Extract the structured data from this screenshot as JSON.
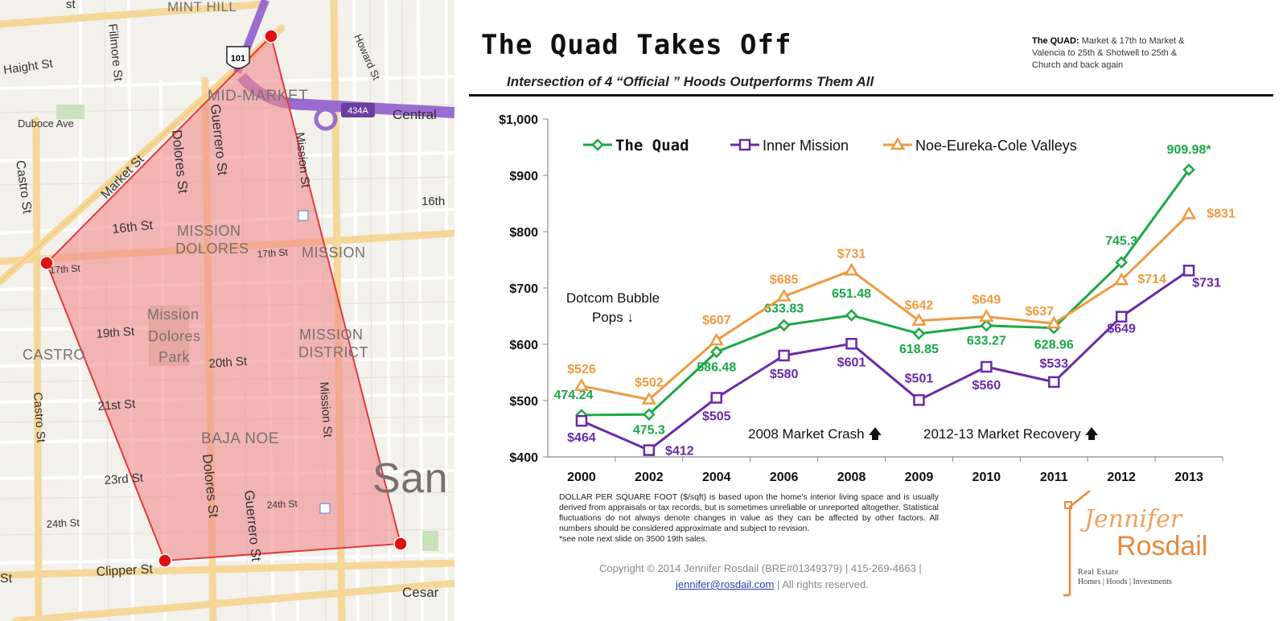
{
  "map": {
    "streets": {
      "haight": "Haight St",
      "fillmore": "Fillmore St",
      "duboce": "Duboce Ave",
      "castro_v": "Castro St",
      "market": "Market St",
      "dolores": "Dolores St",
      "guerrero": "Guerrero St",
      "mission": "Mission St",
      "howard": "Howard St",
      "st16": "16th St",
      "st17": "17th St",
      "st19": "19th St",
      "st20": "20th St",
      "st21": "21st St",
      "st23": "23rd St",
      "st24": "24th St",
      "clipper": "Clipper St",
      "cesar": "Cesar",
      "central": "Central",
      "sixteenth_right": "16th",
      "castro_v2": "Castro St",
      "dolores2": "Dolores St",
      "guerrero2": "Guerrero St",
      "mission2": "Mission St",
      "st17b": "17th St",
      "st24b": "24th St",
      "st_partial_left": "St",
      "st_partial_top": "st"
    },
    "hoods": {
      "mint_hill": "MINT HILL",
      "mid_market": "MID-MARKET",
      "mission_dolores1": "MISSION",
      "mission_dolores2": "DOLORES",
      "mission_top": "MISSION",
      "castro": "CASTRO",
      "park1": "Mission",
      "park2": "Dolores",
      "park3": "Park",
      "mission_district1": "MISSION",
      "mission_district2": "DISTRICT",
      "baja_noe": "BAJA NOE",
      "san": "San"
    },
    "shields": {
      "us101": "101",
      "exit434a": "434A"
    },
    "colors": {
      "polygon_fill": "#f08c8c",
      "polygon_stroke": "#e23a3a",
      "pin": "#e01010",
      "major_road": "#f6d79a",
      "freeway": "#9b6bd1"
    }
  },
  "header": {
    "title": "The Quad Takes Off",
    "subtitle": "Intersection of 4 “Official ” Hoods Outperforms Them All",
    "quad_note_label": "The QUAD:",
    "quad_note_text": "Market & 17th to Market & Valencia to 25th & Shotwell to 25th & Church and back again"
  },
  "chart_data": {
    "type": "line",
    "categories": [
      "2000",
      "2002",
      "2004",
      "2006",
      "2008",
      "2009",
      "2010",
      "2011",
      "2012",
      "2013"
    ],
    "ylim": [
      400,
      1000
    ],
    "y_ticks": [
      400,
      500,
      600,
      700,
      800,
      900,
      1000
    ],
    "y_tick_labels": [
      "$400",
      "$500",
      "$600",
      "$700",
      "$800",
      "$900",
      "$1,000"
    ],
    "xlabel": "",
    "ylabel": "",
    "legend_position": "top",
    "grid": false,
    "series": [
      {
        "name": "The Quad",
        "color": "#1aa845",
        "marker": "diamond",
        "values": [
          474.24,
          475.3,
          586.48,
          633.83,
          651.48,
          618.85,
          633.27,
          628.96,
          745.3,
          909.98
        ],
        "labels": [
          "474.24",
          "475.3",
          "586.48",
          "633.83",
          "651.48",
          "618.85",
          "633.27",
          "628.96",
          "745.3",
          "909.98*"
        ]
      },
      {
        "name": "Inner Mission",
        "color": "#6a2aa8",
        "marker": "square",
        "values": [
          464,
          412,
          505,
          580,
          601,
          501,
          560,
          533,
          649,
          731
        ],
        "labels": [
          "$464",
          "$412",
          "$505",
          "$580",
          "$601",
          "$501",
          "$560",
          "$533",
          "$649",
          "$731"
        ]
      },
      {
        "name": "Noe-Eureka-Cole Valleys",
        "color": "#ee9a40",
        "marker": "triangle",
        "values": [
          526,
          502,
          607,
          685,
          731,
          642,
          649,
          637,
          714,
          831
        ],
        "labels": [
          "$526",
          "$502",
          "$607",
          "$685",
          "$731",
          "$642",
          "$649",
          "$637",
          "$714",
          "$831"
        ]
      }
    ],
    "annotations": {
      "dotcom1": "Dotcom Bubble",
      "dotcom2": "Pops ↓",
      "crash": "2008 Market Crash 🡅",
      "recovery": "2012-13 Market Recovery 🡅"
    }
  },
  "footer": {
    "note": "DOLLAR PER SQUARE FOOT ($/sqft) is based upon the home's interior living space and is usually derived from appraisals or tax records, but is sometimes unreliable or unreported altogether. Statistical fluctuations do not always denote changes in value as they can be affected by other factors. All numbers should be considered approximate and subject to revision.",
    "note2": "*see note next slide on 3500 19th sales.",
    "copyright": "Copyright © 2014 Jennifer Rosdail (BRE#01349379) | 415-269-4663 |",
    "email": "jennifer@rosdail.com",
    "rights": "| All rights reserved."
  },
  "logo": {
    "first": "Jennifer",
    "last": "Rosdail",
    "tag1": "Real Estate",
    "tag2": "Homes | Hoods | Investments"
  }
}
